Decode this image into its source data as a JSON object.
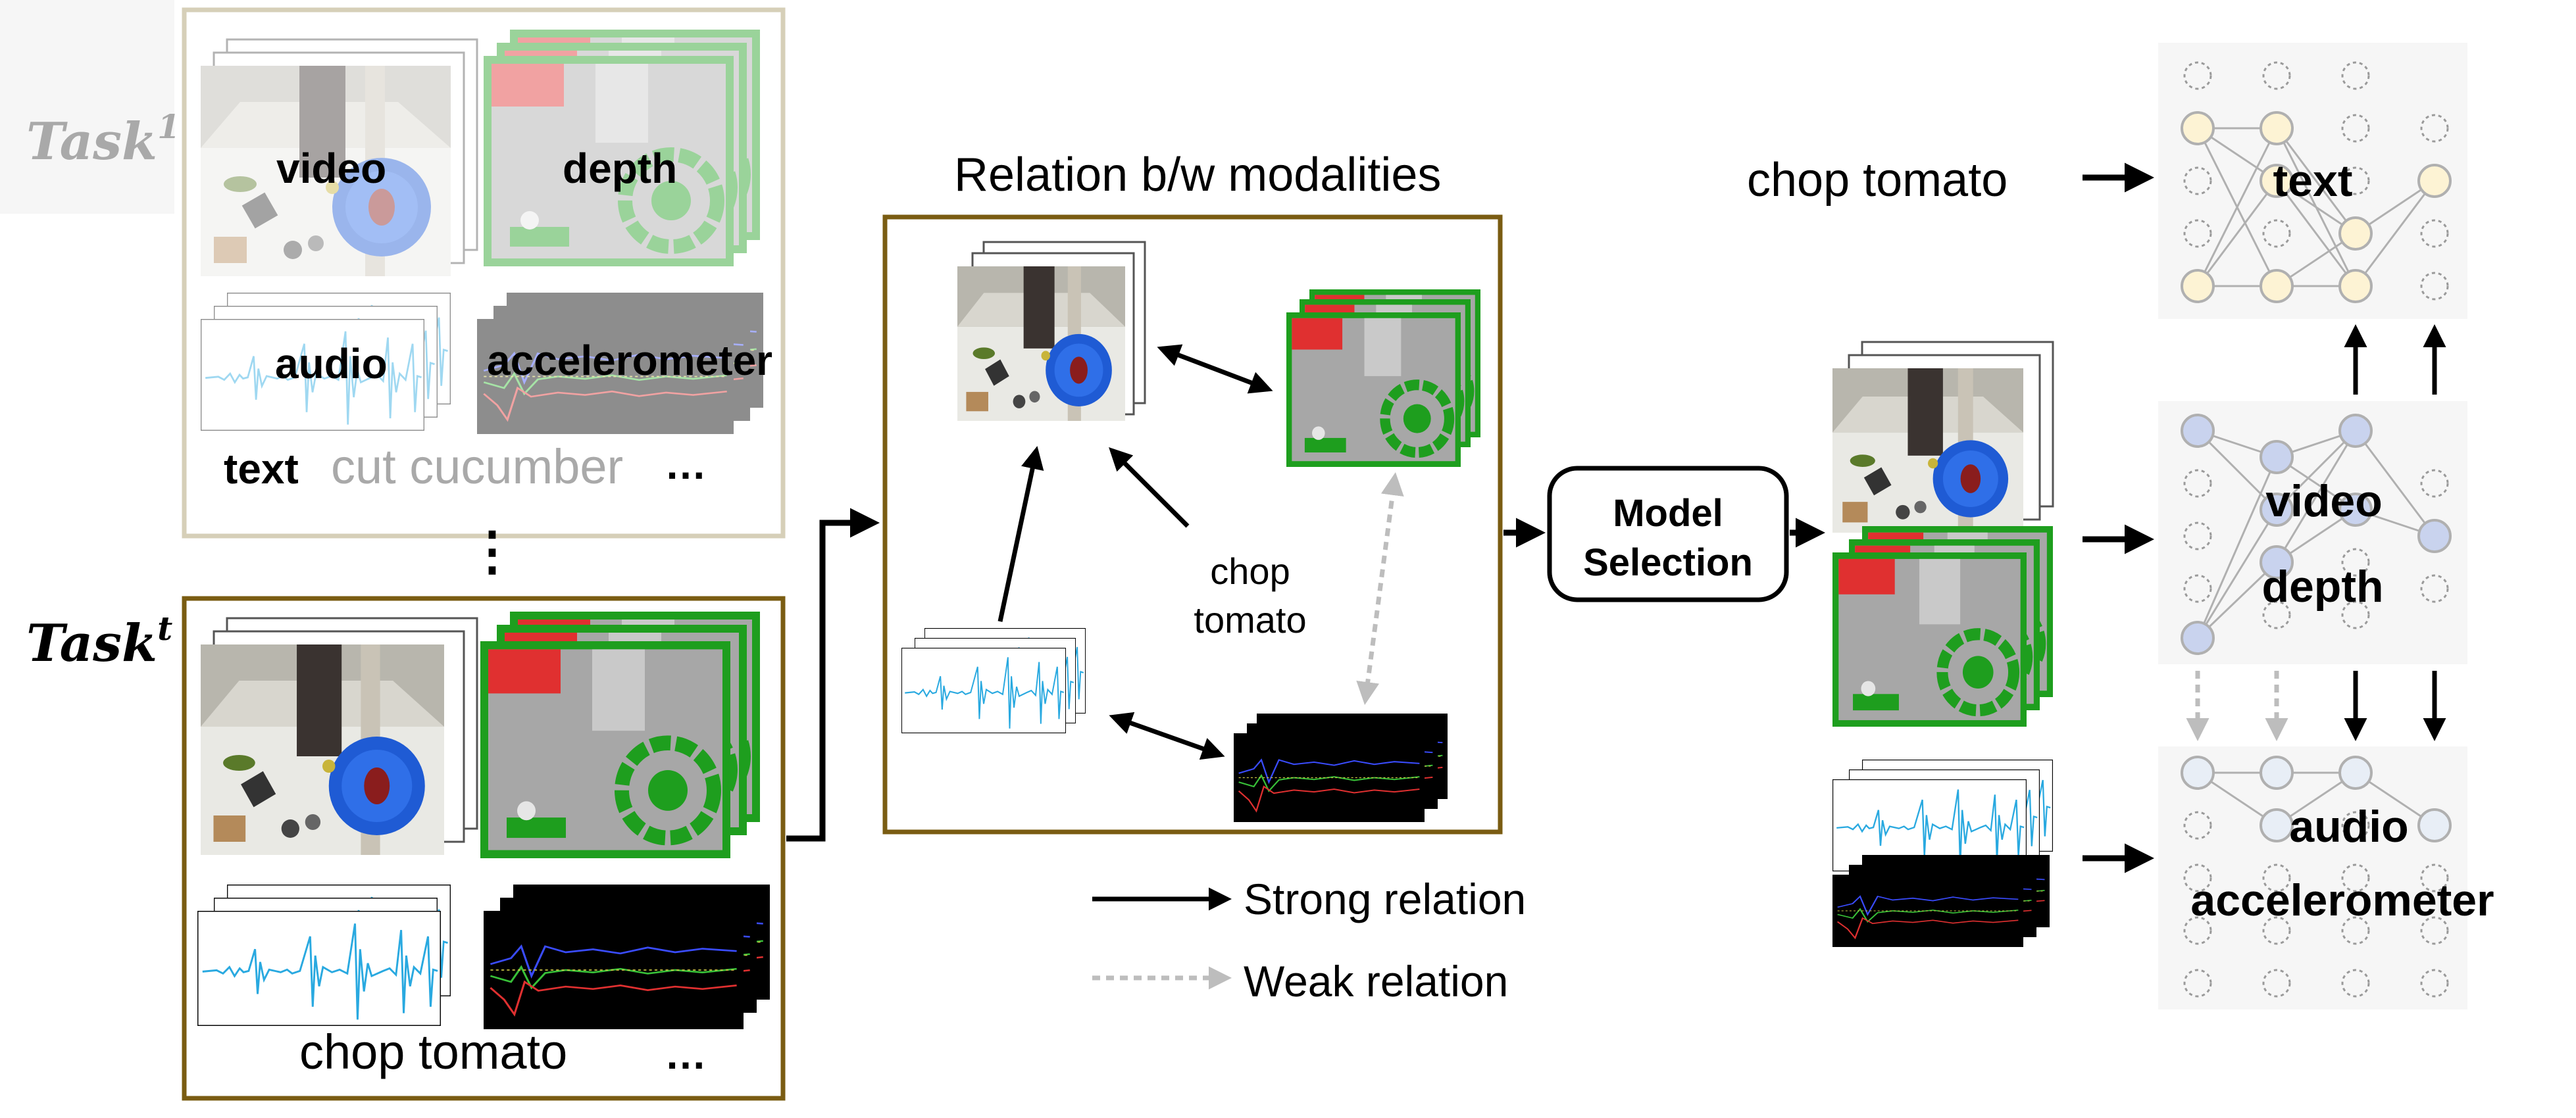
{
  "tasks": {
    "task1_base": "Task",
    "task1_sup": "1",
    "taskt_base": "Task",
    "taskt_sup": "t",
    "vertical_ellipsis": "⋮"
  },
  "task1_panel": {
    "video_label": "video",
    "depth_label": "depth",
    "audio_label": "audio",
    "accelerometer_label": "accelerometer",
    "text_label": "text",
    "text_value": "cut cucumber",
    "ellipsis": "…"
  },
  "taskt_panel": {
    "text_value": "chop tomato",
    "ellipsis": "…"
  },
  "relation_panel": {
    "title": "Relation b/w modalities",
    "text_line1": "chop",
    "text_line2": "tomato"
  },
  "legend": {
    "strong": "Strong relation",
    "weak": "Weak relation"
  },
  "model_selection": {
    "line1": "Model",
    "line2": "Selection"
  },
  "networks": {
    "input_text": "chop tomato",
    "text_net_label": "text",
    "vd_label1": "video",
    "vd_label2": "depth",
    "aa_label1": "audio",
    "aa_label2": "accelerometer"
  },
  "colors": {
    "task1_border": "#d6cfb8",
    "taskt_border": "#7a5c12",
    "relation_border": "#7a5c12",
    "depth_green": "#1e9e1e",
    "audio_wave": "#29a9e0",
    "text_node_fill": "#fdf3d4",
    "video_node_fill": "#c9d3ee",
    "audio_node_fill": "#e8eef6",
    "weak_arrow": "#bdbdbd"
  }
}
